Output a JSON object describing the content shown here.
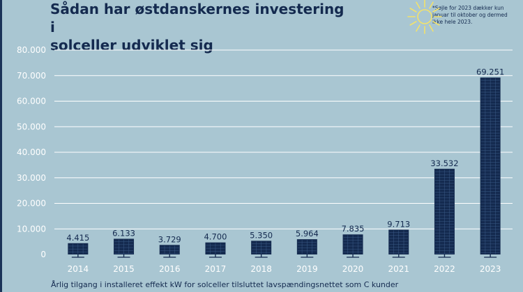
{
  "header": {
    "title_line1": "Sådan har østdanskernes investering i",
    "title_line2": "solceller udviklet sig",
    "note": "*Søjle for 2023 dækker kun januar til oktober og dermed ikke hele 2023."
  },
  "footer": {
    "caption": "Årlig tilgang i installeret effekt kW for solceller tilsluttet lavspændingsnettet som C kunder"
  },
  "colors": {
    "background": "#a9c6d2",
    "bar": "#142a4f",
    "text": "#142a4f",
    "grid": "#ffffff",
    "sun": "#f3e26a"
  },
  "icons": {
    "sun": "sun-icon"
  },
  "chart_data": {
    "type": "bar",
    "title": "Sådan har østdanskernes investering i solceller udviklet sig",
    "categories": [
      "2014",
      "2015",
      "2016",
      "2017",
      "2018",
      "2019",
      "2020",
      "2021",
      "2022",
      "2023"
    ],
    "values": [
      4415,
      6133,
      3729,
      4700,
      5350,
      5964,
      7835,
      9713,
      33532,
      69251
    ],
    "value_labels": [
      "4.415",
      "6.133",
      "3.729",
      "4.700",
      "5.350",
      "5.964",
      "7.835",
      "9.713",
      "33.532",
      "69.251"
    ],
    "ylim": [
      0,
      80000
    ],
    "yticks": [
      0,
      10000,
      20000,
      30000,
      40000,
      50000,
      60000,
      70000,
      80000
    ],
    "ytick_labels": [
      "0",
      "10.000",
      "20.000",
      "30.000",
      "40.000",
      "50.000",
      "60.000",
      "70.000",
      "80.000"
    ],
    "xlabel": "",
    "ylabel": "",
    "grid": true,
    "legend": "none"
  }
}
